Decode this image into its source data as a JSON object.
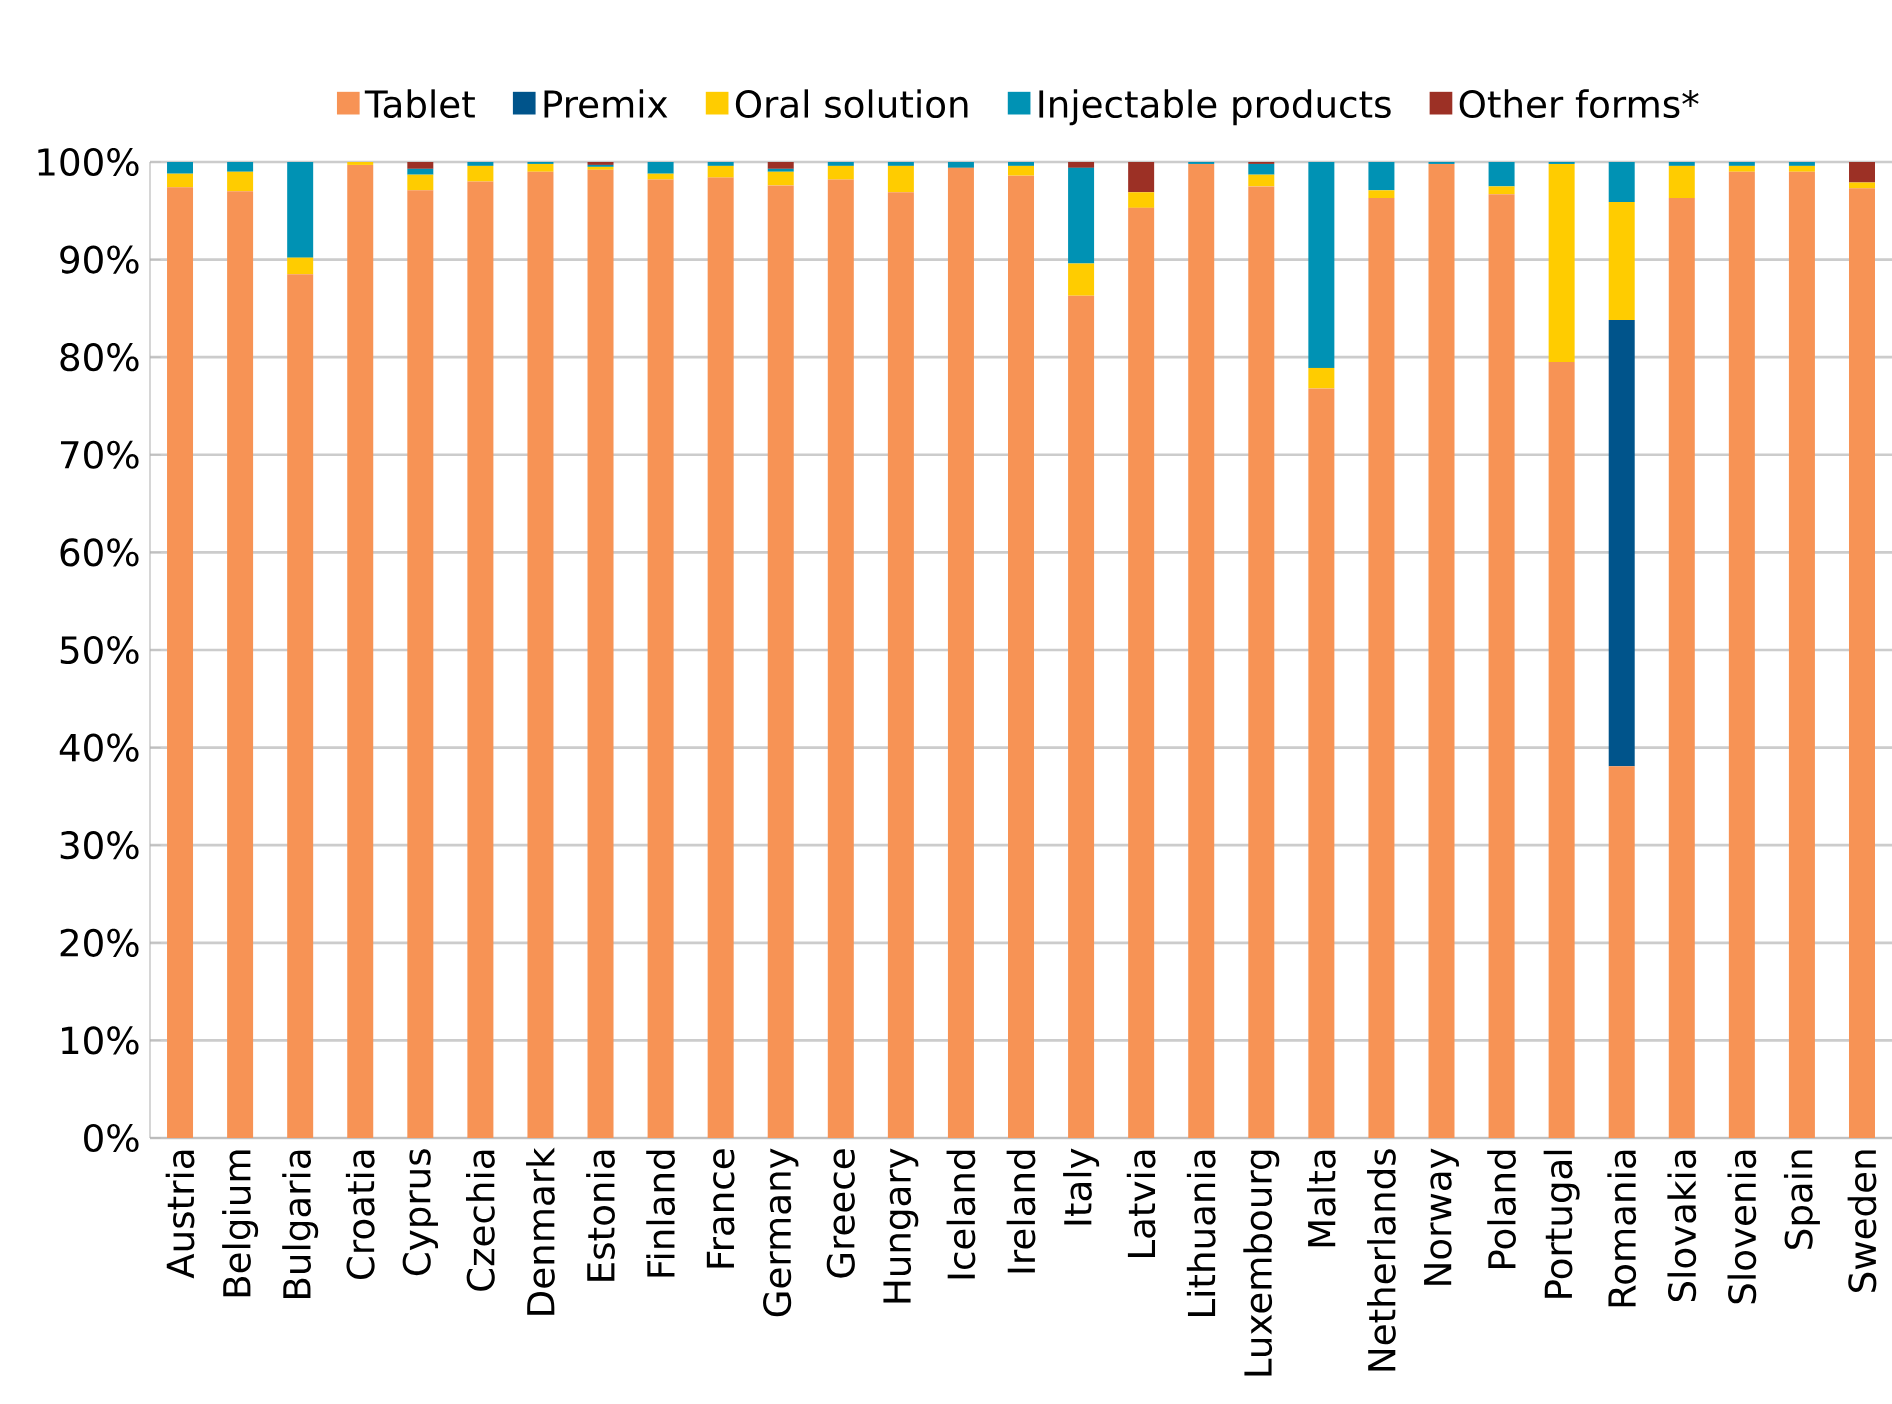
{
  "chart_data": {
    "type": "bar",
    "stacked": true,
    "grid": "y",
    "legend": "top",
    "categories": [
      "Austria",
      "Belgium",
      "Bulgaria",
      "Croatia",
      "Cyprus",
      "Czechia",
      "Denmark",
      "Estonia",
      "Finland",
      "France",
      "Germany",
      "Greece",
      "Hungary",
      "Iceland",
      "Ireland",
      "Italy",
      "Latvia",
      "Lithuania",
      "Luxembourg",
      "Malta",
      "Netherlands",
      "Norway",
      "Poland",
      "Portugal",
      "Romania",
      "Slovakia",
      "Slovenia",
      "Spain",
      "Sweden"
    ],
    "ylim": [
      0,
      100
    ],
    "yticks": [
      {
        "value": 0,
        "label": "0%"
      },
      {
        "value": 10,
        "label": "10%"
      },
      {
        "value": 20,
        "label": "20%"
      },
      {
        "value": 30,
        "label": "30%"
      },
      {
        "value": 40,
        "label": "40%"
      },
      {
        "value": 50,
        "label": "50%"
      },
      {
        "value": 60,
        "label": "60%"
      },
      {
        "value": 70,
        "label": "70%"
      },
      {
        "value": 80,
        "label": "80%"
      },
      {
        "value": 90,
        "label": "90%"
      },
      {
        "value": 100,
        "label": "100%"
      }
    ],
    "series": [
      {
        "name": "Tablet",
        "color": "#f79355",
        "values": [
          97.4,
          97.0,
          88.5,
          99.7,
          97.1,
          98.0,
          99.0,
          99.2,
          98.2,
          98.4,
          97.6,
          98.2,
          96.9,
          99.4,
          98.6,
          86.3,
          95.3,
          99.8,
          97.5,
          76.8,
          96.3,
          99.8,
          96.7,
          79.5,
          38.1,
          96.3,
          99.0,
          99.0,
          97.3
        ]
      },
      {
        "name": "Premix",
        "color": "#00548b",
        "values": [
          0,
          0,
          0,
          0,
          0,
          0,
          0,
          0,
          0,
          0,
          0,
          0,
          0,
          0,
          0,
          0,
          0,
          0,
          0,
          0,
          0,
          0,
          0,
          0,
          45.7,
          0,
          0,
          0,
          0
        ]
      },
      {
        "name": "Oral solution",
        "color": "#ffcc00",
        "values": [
          1.4,
          2.0,
          1.7,
          0.3,
          1.6,
          1.6,
          0.8,
          0.3,
          0.6,
          1.2,
          1.4,
          1.4,
          2.7,
          0,
          1.0,
          3.3,
          1.6,
          0,
          1.2,
          2.1,
          0.8,
          0,
          0.8,
          20.3,
          12.1,
          3.3,
          0.6,
          0.6,
          0.6
        ]
      },
      {
        "name": "Injectable products",
        "color": "#0092b4",
        "values": [
          1.2,
          1.0,
          9.8,
          0,
          0.6,
          0.4,
          0.2,
          0.2,
          1.2,
          0.4,
          0.3,
          0.4,
          0.4,
          0.6,
          0.4,
          9.8,
          0,
          0.2,
          1.1,
          21.1,
          2.9,
          0.2,
          2.5,
          0.2,
          4.1,
          0.4,
          0.4,
          0.4,
          0
        ]
      },
      {
        "name": "Other forms*",
        "color": "#9c3025",
        "values": [
          0,
          0,
          0,
          0,
          0.7,
          0,
          0,
          0.3,
          0,
          0,
          0.7,
          0,
          0,
          0,
          0,
          0.6,
          3.1,
          0,
          0.2,
          0,
          0,
          0,
          0,
          0,
          0,
          0,
          0,
          0,
          2.1
        ]
      }
    ]
  }
}
